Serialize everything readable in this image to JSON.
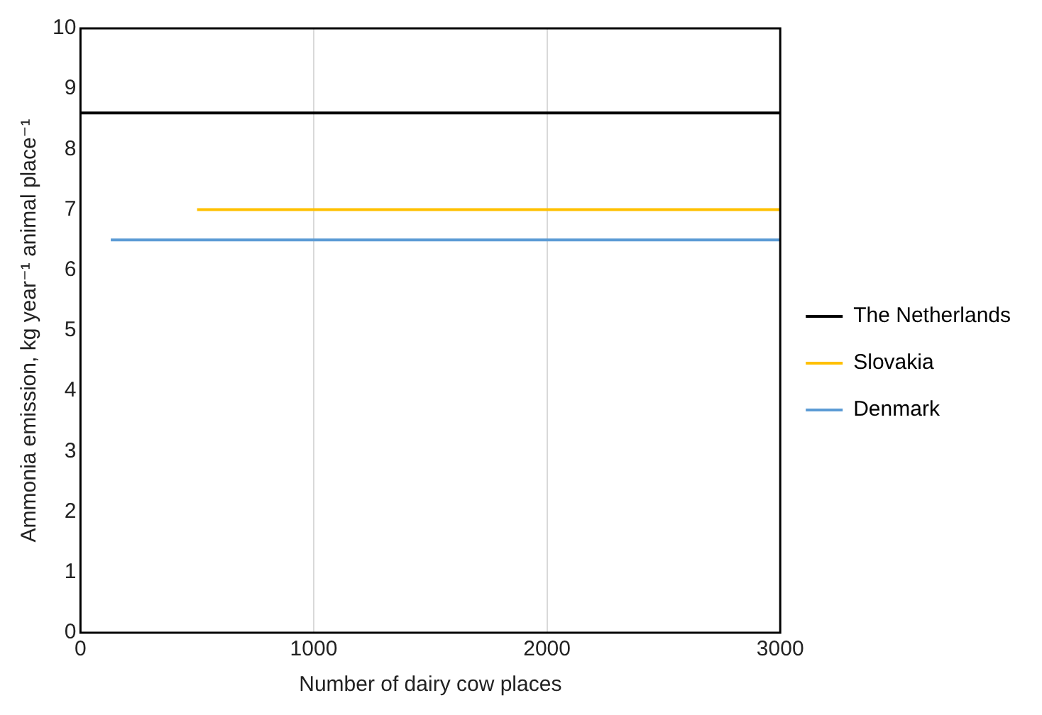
{
  "chart_data": {
    "type": "line",
    "xlabel": "Number of dairy cow places",
    "ylabel": "Ammonia emission, kg year⁻¹ animal place⁻¹",
    "series": [
      {
        "name": "The Netherlands",
        "color": "#000000",
        "x": [
          0,
          3000
        ],
        "values": [
          8.6,
          8.6
        ]
      },
      {
        "name": "Slovakia",
        "color": "#ffc000",
        "x": [
          500,
          3000
        ],
        "values": [
          7.0,
          7.0
        ]
      },
      {
        "name": "Denmark",
        "color": "#5b9bd5",
        "x": [
          130,
          3000
        ],
        "values": [
          6.5,
          6.5
        ]
      }
    ],
    "xlim": [
      0,
      3000
    ],
    "xticks": [
      0,
      1000,
      2000,
      3000
    ],
    "ylim": [
      0,
      10
    ],
    "yticks": [
      0,
      1,
      2,
      3,
      4,
      5,
      6,
      7,
      8,
      9,
      10
    ],
    "grid": "x",
    "legend": "right",
    "marker": "none",
    "line_style": "solid"
  }
}
